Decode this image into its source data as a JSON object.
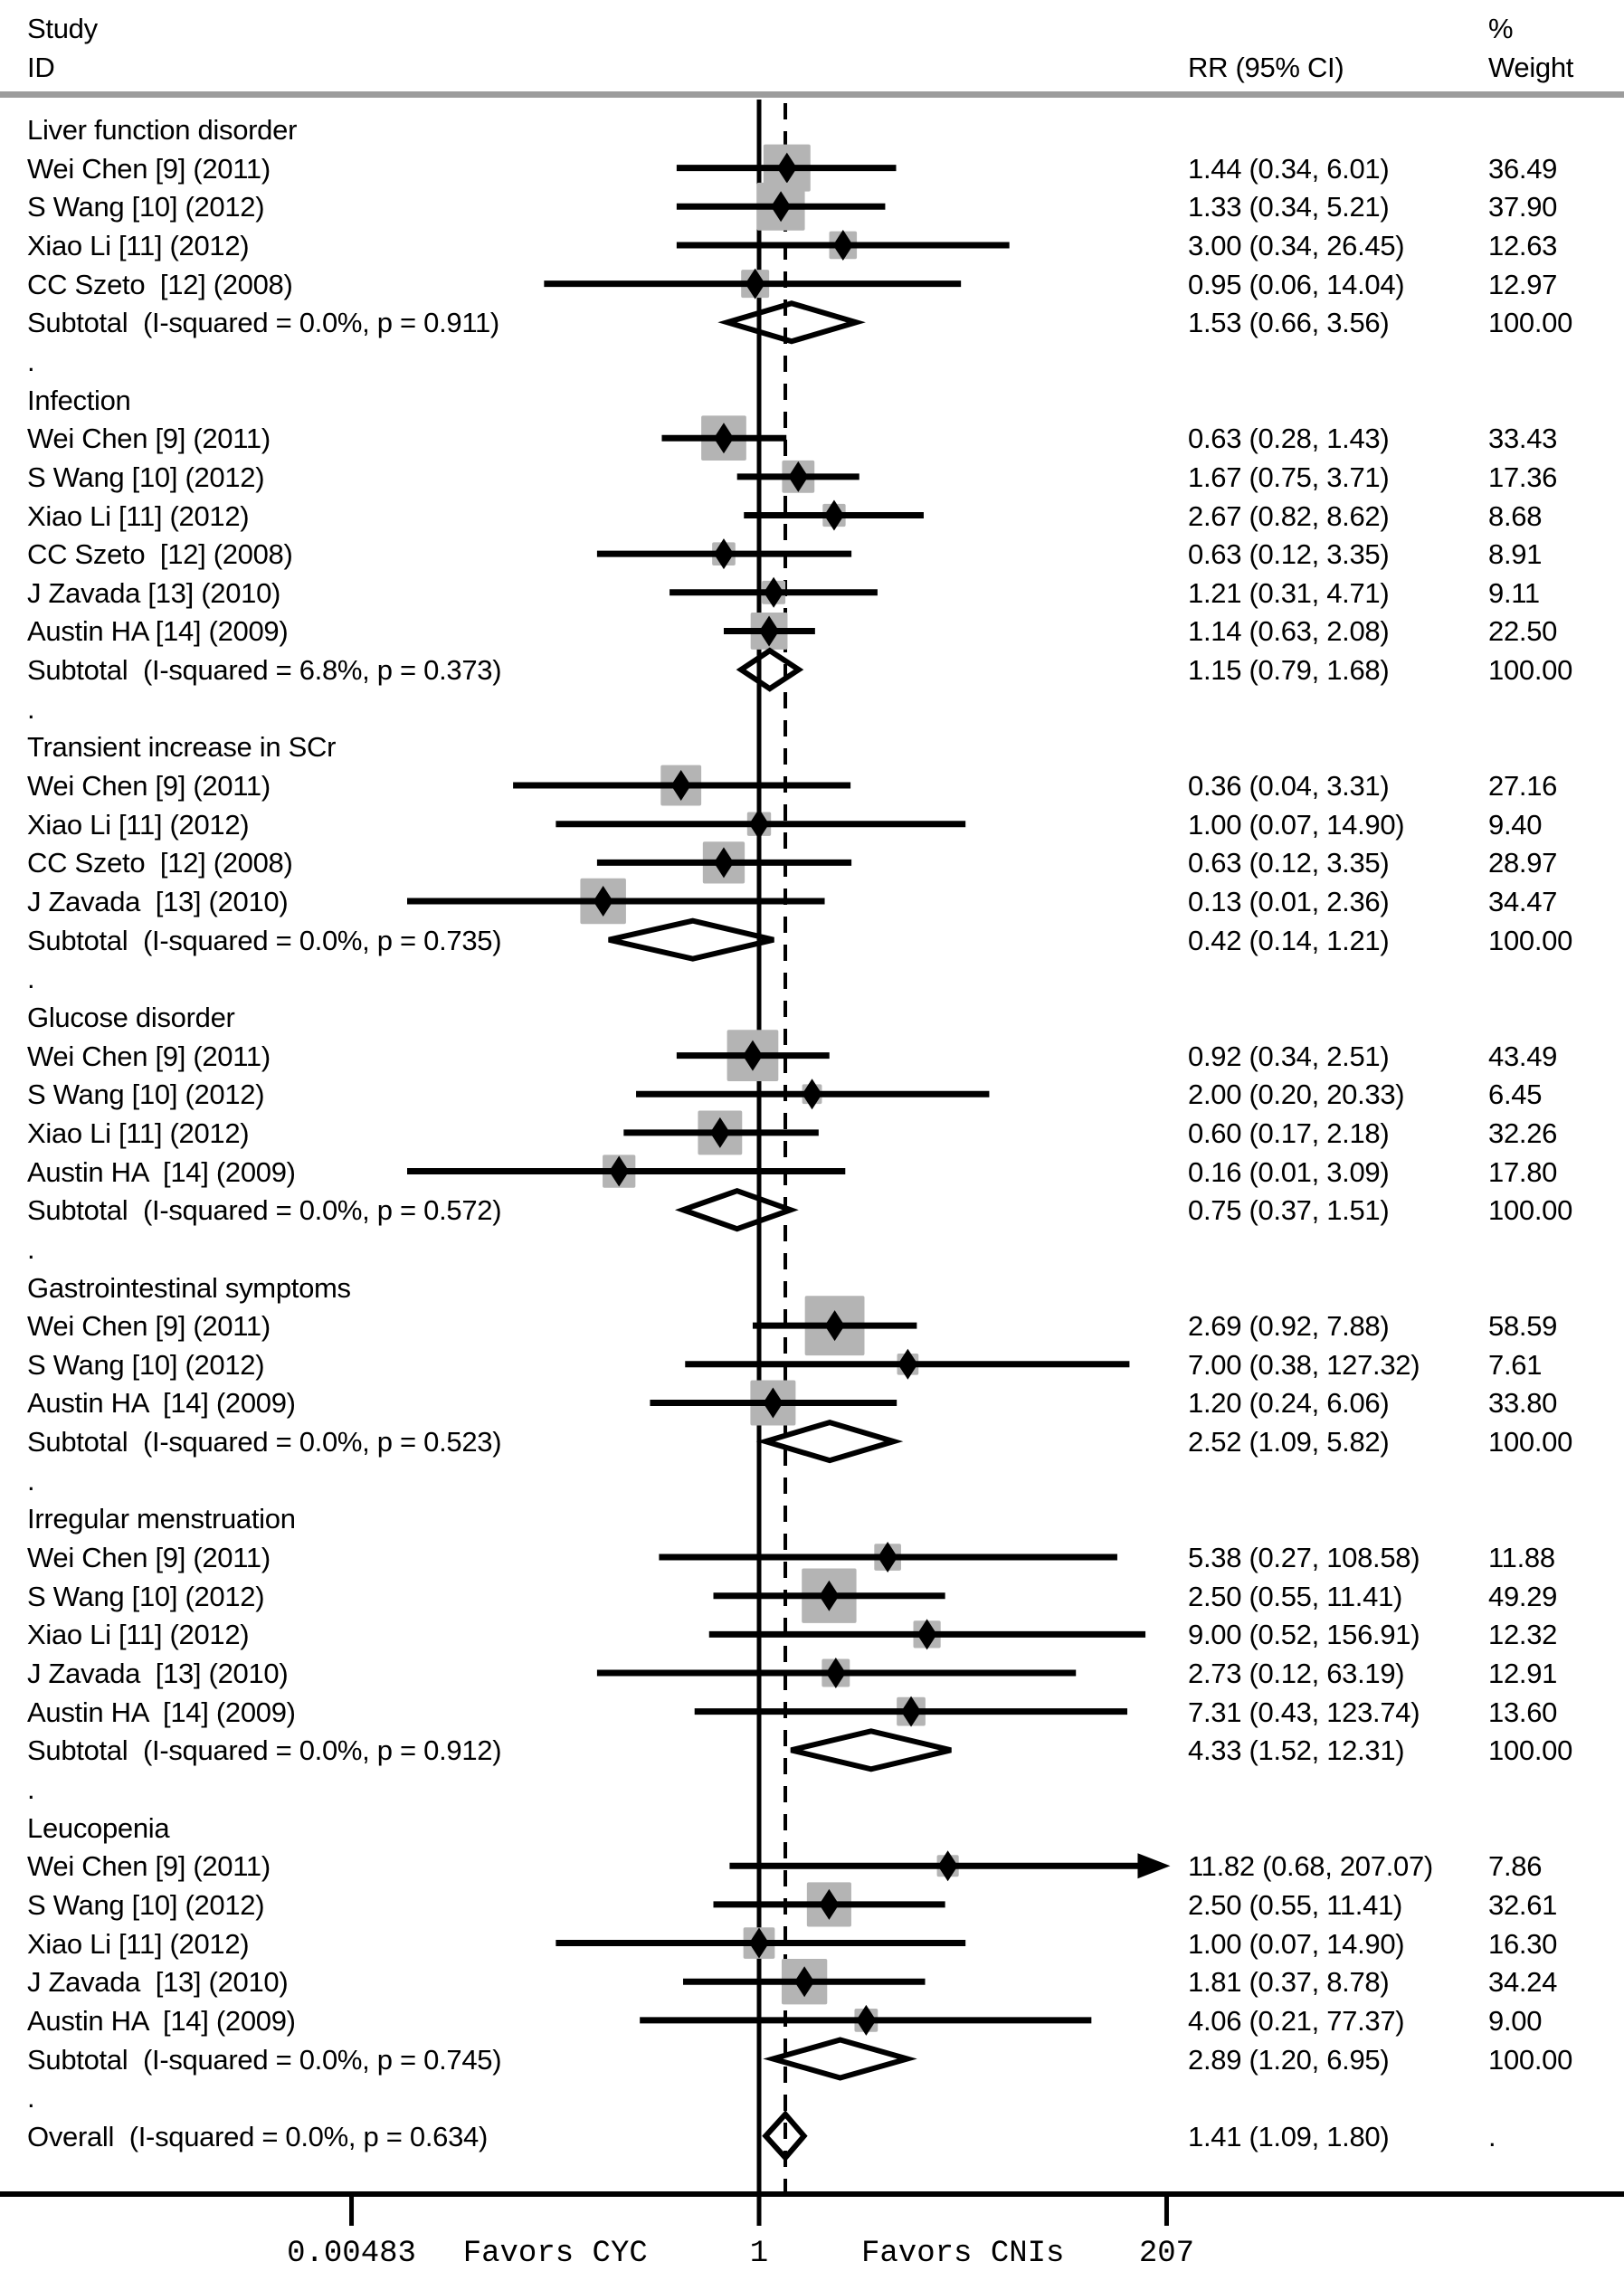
{
  "header": {
    "study_line1": "Study",
    "study_line2": "ID",
    "rr_col": "RR (95% CI)",
    "pct": "%",
    "weight": "Weight"
  },
  "colors": {
    "square": "#b4b4b4",
    "ink": "#000000",
    "header_rule": "#9c9c9c"
  },
  "chart_data": {
    "type": "forest",
    "effect_measure": "RR",
    "x_scale": "log",
    "ticks": [
      0.00483,
      1,
      207
    ],
    "tick_labels": [
      "0.00483",
      "1",
      "207"
    ],
    "favors_left": "Favors CYC",
    "favors_right": "Favors CNIs",
    "null_value": 1,
    "overall_value": 1.41,
    "groups": [
      {
        "name": "Liver function disorder",
        "studies": [
          {
            "label": "Wei Chen [9] (2011)",
            "rr": 1.44,
            "lo": 0.34,
            "hi": 6.01,
            "rr_text": "1.44 (0.34, 6.01)",
            "weight": 36.49,
            "weight_text": "36.49"
          },
          {
            "label": "S Wang [10] (2012)",
            "rr": 1.33,
            "lo": 0.34,
            "hi": 5.21,
            "rr_text": "1.33 (0.34, 5.21)",
            "weight": 37.9,
            "weight_text": "37.90"
          },
          {
            "label": "Xiao Li [11] (2012)",
            "rr": 3.0,
            "lo": 0.34,
            "hi": 26.45,
            "rr_text": "3.00 (0.34, 26.45)",
            "weight": 12.63,
            "weight_text": "12.63"
          },
          {
            "label": "CC Szeto  [12] (2008)",
            "rr": 0.95,
            "lo": 0.06,
            "hi": 14.04,
            "rr_text": "0.95 (0.06, 14.04)",
            "weight": 12.97,
            "weight_text": "12.97"
          }
        ],
        "subtotal": {
          "label": "Subtotal  (I-squared = 0.0%, p = 0.911)",
          "rr": 1.53,
          "lo": 0.66,
          "hi": 3.56,
          "rr_text": "1.53 (0.66, 3.56)",
          "weight_text": "100.00"
        }
      },
      {
        "name": "Infection",
        "studies": [
          {
            "label": "Wei Chen [9] (2011)",
            "rr": 0.63,
            "lo": 0.28,
            "hi": 1.43,
            "rr_text": "0.63 (0.28, 1.43)",
            "weight": 33.43,
            "weight_text": "33.43"
          },
          {
            "label": "S Wang [10] (2012)",
            "rr": 1.67,
            "lo": 0.75,
            "hi": 3.71,
            "rr_text": "1.67 (0.75, 3.71)",
            "weight": 17.36,
            "weight_text": "17.36"
          },
          {
            "label": "Xiao Li [11] (2012)",
            "rr": 2.67,
            "lo": 0.82,
            "hi": 8.62,
            "rr_text": "2.67 (0.82, 8.62)",
            "weight": 8.68,
            "weight_text": "8.68"
          },
          {
            "label": "CC Szeto  [12] (2008)",
            "rr": 0.63,
            "lo": 0.12,
            "hi": 3.35,
            "rr_text": "0.63 (0.12, 3.35)",
            "weight": 8.91,
            "weight_text": "8.91"
          },
          {
            "label": "J Zavada [13] (2010)",
            "rr": 1.21,
            "lo": 0.31,
            "hi": 4.71,
            "rr_text": "1.21 (0.31, 4.71)",
            "weight": 9.11,
            "weight_text": "9.11"
          },
          {
            "label": "Austin HA [14] (2009)",
            "rr": 1.14,
            "lo": 0.63,
            "hi": 2.08,
            "rr_text": "1.14 (0.63, 2.08)",
            "weight": 22.5,
            "weight_text": "22.50"
          }
        ],
        "subtotal": {
          "label": "Subtotal  (I-squared = 6.8%, p = 0.373)",
          "rr": 1.15,
          "lo": 0.79,
          "hi": 1.68,
          "rr_text": "1.15 (0.79, 1.68)",
          "weight_text": "100.00"
        }
      },
      {
        "name": "Transient increase in SCr",
        "studies": [
          {
            "label": "Wei Chen [9] (2011)",
            "rr": 0.36,
            "lo": 0.04,
            "hi": 3.31,
            "rr_text": "0.36 (0.04, 3.31)",
            "weight": 27.16,
            "weight_text": "27.16"
          },
          {
            "label": "Xiao Li [11] (2012)",
            "rr": 1.0,
            "lo": 0.07,
            "hi": 14.9,
            "rr_text": "1.00 (0.07, 14.90)",
            "weight": 9.4,
            "weight_text": "9.40"
          },
          {
            "label": "CC Szeto  [12] (2008)",
            "rr": 0.63,
            "lo": 0.12,
            "hi": 3.35,
            "rr_text": "0.63 (0.12, 3.35)",
            "weight": 28.97,
            "weight_text": "28.97"
          },
          {
            "label": "J Zavada  [13] (2010)",
            "rr": 0.13,
            "lo": 0.01,
            "hi": 2.36,
            "rr_text": "0.13 (0.01, 2.36)",
            "weight": 34.47,
            "weight_text": "34.47"
          }
        ],
        "subtotal": {
          "label": "Subtotal  (I-squared = 0.0%, p = 0.735)",
          "rr": 0.42,
          "lo": 0.14,
          "hi": 1.21,
          "rr_text": "0.42 (0.14, 1.21)",
          "weight_text": "100.00"
        }
      },
      {
        "name": "Glucose disorder",
        "studies": [
          {
            "label": "Wei Chen [9] (2011)",
            "rr": 0.92,
            "lo": 0.34,
            "hi": 2.51,
            "rr_text": "0.92 (0.34, 2.51)",
            "weight": 43.49,
            "weight_text": "43.49"
          },
          {
            "label": "S Wang [10] (2012)",
            "rr": 2.0,
            "lo": 0.2,
            "hi": 20.33,
            "rr_text": "2.00 (0.20, 20.33)",
            "weight": 6.45,
            "weight_text": "6.45"
          },
          {
            "label": "Xiao Li [11] (2012)",
            "rr": 0.6,
            "lo": 0.17,
            "hi": 2.18,
            "rr_text": "0.60 (0.17, 2.18)",
            "weight": 32.26,
            "weight_text": "32.26"
          },
          {
            "label": "Austin HA  [14] (2009)",
            "rr": 0.16,
            "lo": 0.01,
            "hi": 3.09,
            "rr_text": "0.16 (0.01, 3.09)",
            "weight": 17.8,
            "weight_text": "17.80"
          }
        ],
        "subtotal": {
          "label": "Subtotal  (I-squared = 0.0%, p = 0.572)",
          "rr": 0.75,
          "lo": 0.37,
          "hi": 1.51,
          "rr_text": "0.75 (0.37, 1.51)",
          "weight_text": "100.00"
        }
      },
      {
        "name": "Gastrointestinal symptoms",
        "studies": [
          {
            "label": "Wei Chen [9] (2011)",
            "rr": 2.69,
            "lo": 0.92,
            "hi": 7.88,
            "rr_text": "2.69 (0.92, 7.88)",
            "weight": 58.59,
            "weight_text": "58.59"
          },
          {
            "label": "S Wang [10] (2012)",
            "rr": 7.0,
            "lo": 0.38,
            "hi": 127.32,
            "rr_text": "7.00 (0.38, 127.32)",
            "weight": 7.61,
            "weight_text": "7.61"
          },
          {
            "label": "Austin HA  [14] (2009)",
            "rr": 1.2,
            "lo": 0.24,
            "hi": 6.06,
            "rr_text": "1.20 (0.24, 6.06)",
            "weight": 33.8,
            "weight_text": "33.80"
          }
        ],
        "subtotal": {
          "label": "Subtotal  (I-squared = 0.0%, p = 0.523)",
          "rr": 2.52,
          "lo": 1.09,
          "hi": 5.82,
          "rr_text": "2.52 (1.09, 5.82)",
          "weight_text": "100.00"
        }
      },
      {
        "name": "Irregular menstruation",
        "studies": [
          {
            "label": "Wei Chen [9] (2011)",
            "rr": 5.38,
            "lo": 0.27,
            "hi": 108.58,
            "rr_text": "5.38 (0.27, 108.58)",
            "weight": 11.88,
            "weight_text": "11.88"
          },
          {
            "label": "S Wang [10] (2012)",
            "rr": 2.5,
            "lo": 0.55,
            "hi": 11.41,
            "rr_text": "2.50 (0.55, 11.41)",
            "weight": 49.29,
            "weight_text": "49.29"
          },
          {
            "label": "Xiao Li [11] (2012)",
            "rr": 9.0,
            "lo": 0.52,
            "hi": 156.91,
            "rr_text": "9.00 (0.52, 156.91)",
            "weight": 12.32,
            "weight_text": "12.32"
          },
          {
            "label": "J Zavada  [13] (2010)",
            "rr": 2.73,
            "lo": 0.12,
            "hi": 63.19,
            "rr_text": "2.73 (0.12, 63.19)",
            "weight": 12.91,
            "weight_text": "12.91"
          },
          {
            "label": "Austin HA  [14] (2009)",
            "rr": 7.31,
            "lo": 0.43,
            "hi": 123.74,
            "rr_text": "7.31 (0.43, 123.74)",
            "weight": 13.6,
            "weight_text": "13.60"
          }
        ],
        "subtotal": {
          "label": "Subtotal  (I-squared = 0.0%, p = 0.912)",
          "rr": 4.33,
          "lo": 1.52,
          "hi": 12.31,
          "rr_text": "4.33 (1.52, 12.31)",
          "weight_text": "100.00"
        }
      },
      {
        "name": "Leucopenia",
        "studies": [
          {
            "label": "Wei Chen [9] (2011)",
            "rr": 11.82,
            "lo": 0.68,
            "hi": 207.07,
            "rr_text": "11.82 (0.68, 207.07)",
            "weight": 7.86,
            "weight_text": "7.86",
            "arrow_hi": true
          },
          {
            "label": "S Wang [10] (2012)",
            "rr": 2.5,
            "lo": 0.55,
            "hi": 11.41,
            "rr_text": "2.50 (0.55, 11.41)",
            "weight": 32.61,
            "weight_text": "32.61"
          },
          {
            "label": "Xiao Li [11] (2012)",
            "rr": 1.0,
            "lo": 0.07,
            "hi": 14.9,
            "rr_text": "1.00 (0.07, 14.90)",
            "weight": 16.3,
            "weight_text": "16.30"
          },
          {
            "label": "J Zavada  [13] (2010)",
            "rr": 1.81,
            "lo": 0.37,
            "hi": 8.78,
            "rr_text": "1.81 (0.37, 8.78)",
            "weight": 34.24,
            "weight_text": "34.24"
          },
          {
            "label": "Austin HA  [14] (2009)",
            "rr": 4.06,
            "lo": 0.21,
            "hi": 77.37,
            "rr_text": "4.06 (0.21, 77.37)",
            "weight": 9.0,
            "weight_text": "9.00"
          }
        ],
        "subtotal": {
          "label": "Subtotal  (I-squared = 0.0%, p = 0.745)",
          "rr": 2.89,
          "lo": 1.2,
          "hi": 6.95,
          "rr_text": "2.89 (1.20, 6.95)",
          "weight_text": "100.00"
        }
      }
    ],
    "overall": {
      "label": "Overall  (I-squared = 0.0%, p = 0.634)",
      "rr": 1.41,
      "lo": 1.09,
      "hi": 1.8,
      "rr_text": "1.41 (1.09, 1.80)",
      "weight_text": "."
    },
    "separator": "."
  }
}
